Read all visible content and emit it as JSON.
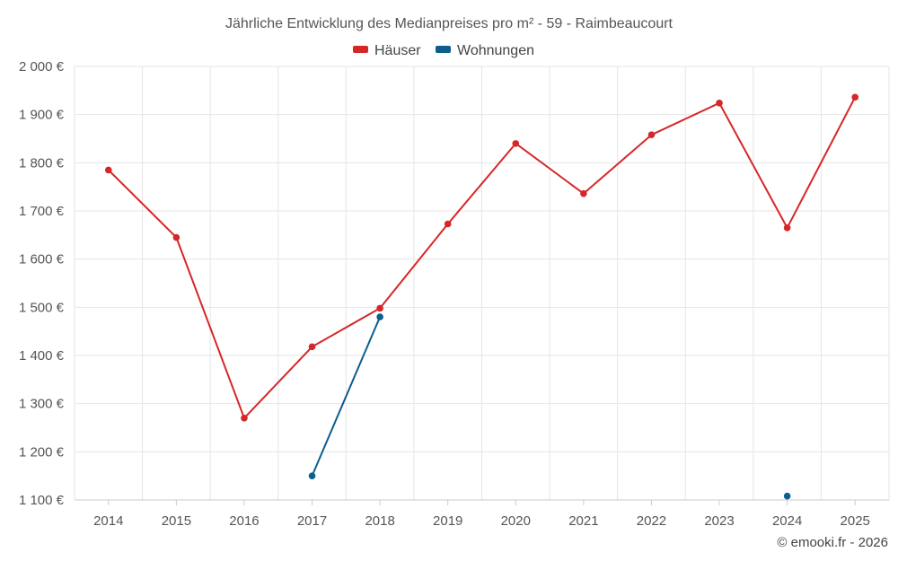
{
  "chart_data": {
    "type": "line",
    "title": "Jährliche Entwicklung des Medianpreises pro m² - 59 - Raimbeaucourt",
    "categories": [
      "2014",
      "2015",
      "2016",
      "2017",
      "2018",
      "2019",
      "2020",
      "2021",
      "2022",
      "2023",
      "2024",
      "2025"
    ],
    "y_tick_labels": [
      "1 100 €",
      "1 200 €",
      "1 300 €",
      "1 400 €",
      "1 500 €",
      "1 600 €",
      "1 700 €",
      "1 800 €",
      "1 900 €",
      "2 000 €"
    ],
    "ylim": [
      1100,
      2000
    ],
    "grid": true,
    "legend_position": "top-center",
    "series": [
      {
        "name": "Häuser",
        "color": "#d62728",
        "values": [
          1785,
          1645,
          1270,
          1418,
          1498,
          1673,
          1840,
          1736,
          1858,
          1924,
          1665,
          1936
        ]
      },
      {
        "name": "Wohnungen",
        "color": "#0b5e8e",
        "values": [
          null,
          null,
          null,
          1150,
          1480,
          null,
          null,
          null,
          null,
          null,
          1108,
          null
        ]
      }
    ]
  },
  "credit": "© emooki.fr - 2026"
}
